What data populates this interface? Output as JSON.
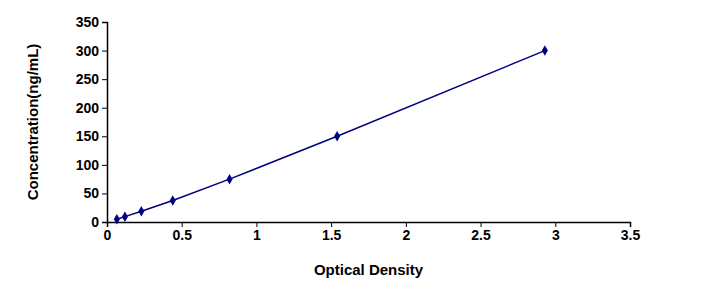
{
  "chart_data": {
    "type": "line",
    "x_label": "Optical Density",
    "y_label": "Concentration(ng/mL)",
    "x": [
      0.066,
      0.12,
      0.23,
      0.44,
      0.82,
      1.54,
      2.93
    ],
    "values": [
      4.69,
      9.38,
      18.75,
      37.5,
      75,
      150,
      300
    ],
    "color": "#000080",
    "marker": "diamond",
    "xlim": [
      0,
      3.5
    ],
    "xticks": [
      0,
      0.5,
      1,
      1.5,
      2,
      2.5,
      3,
      3.5
    ],
    "ylim": [
      0,
      350
    ],
    "yticks": [
      0,
      50,
      100,
      150,
      200,
      250,
      300,
      350
    ],
    "grid": false
  }
}
